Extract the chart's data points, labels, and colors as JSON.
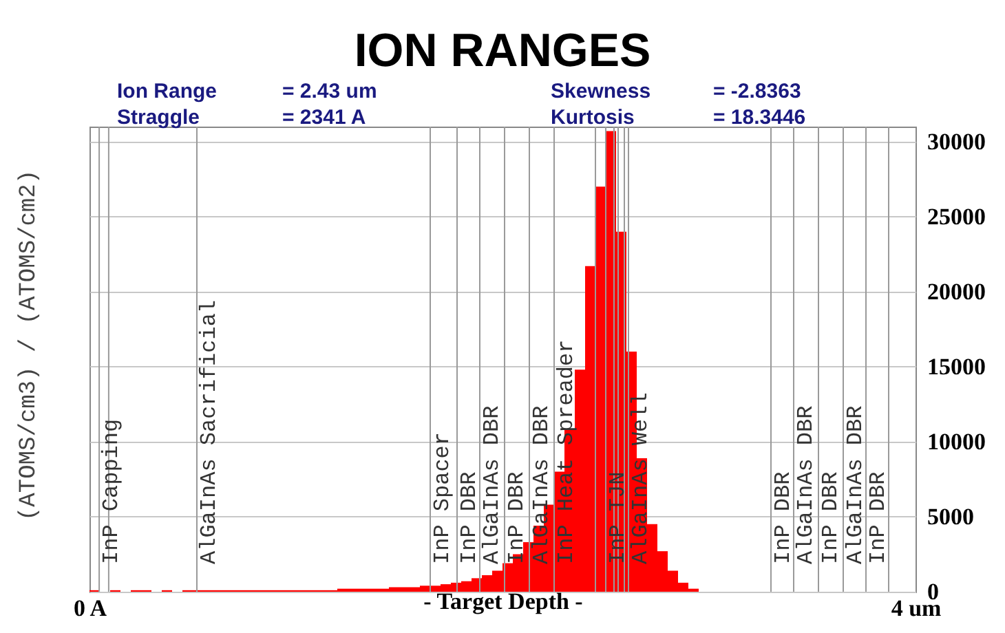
{
  "chart_data": {
    "type": "histogram",
    "title": "ION RANGES",
    "xlabel": "- Target Depth -",
    "ylabel": "(ATOMS/cm3) / (ATOMS/cm2)",
    "annotations": [
      "Ion Range = 2.43 um",
      "Straggle = 2341 A",
      "Skewness = -2.8363",
      "Kurtosis = 18.3446"
    ],
    "bins": [
      0,
      0.05,
      0.1,
      0.15,
      0.2,
      0.25,
      0.3,
      0.35,
      0.4,
      0.45,
      0.5,
      0.55,
      0.6,
      0.65,
      0.7,
      0.75,
      0.8,
      0.85,
      0.9,
      0.95,
      1,
      1.05,
      1.1,
      1.15,
      1.2,
      1.25,
      1.3,
      1.35,
      1.4,
      1.45,
      1.5,
      1.55,
      1.6,
      1.65,
      1.7,
      1.75,
      1.8,
      1.85,
      1.9,
      1.95,
      2,
      2.05,
      2.1,
      2.15,
      2.2,
      2.25,
      2.3,
      2.35,
      2.4,
      2.45,
      2.5,
      2.55,
      2.6,
      2.65,
      2.7,
      2.75,
      2.8,
      2.85,
      2.9,
      2.95,
      3,
      3.05,
      3.1,
      3.15,
      3.2,
      3.25,
      3.3,
      3.35,
      3.4,
      3.45,
      3.5,
      3.55,
      3.6,
      3.65,
      3.7,
      3.75,
      3.8,
      3.85,
      3.9,
      3.95,
      4
    ],
    "values": [
      100,
      0,
      100,
      0,
      100,
      100,
      0,
      100,
      0,
      100,
      100,
      100,
      100,
      100,
      100,
      100,
      100,
      100,
      100,
      100,
      100,
      100,
      100,
      100,
      200,
      200,
      200,
      200,
      200,
      300,
      300,
      300,
      400,
      400,
      500,
      600,
      700,
      900,
      1100,
      1400,
      1900,
      2500,
      3300,
      4400,
      5800,
      8000,
      10800,
      14800,
      21700,
      27000,
      30700,
      24000,
      16000,
      8900,
      4500,
      2700,
      1400,
      600,
      200,
      0,
      0,
      0,
      0,
      0,
      0,
      0,
      0,
      0,
      0,
      0,
      0,
      0,
      0,
      0,
      0,
      0,
      0,
      0,
      0,
      0
    ],
    "color": "#ff0000",
    "xlim": [
      0,
      4
    ],
    "xticks": [
      {
        "value": 0,
        "label": "0 A"
      },
      {
        "value": 4,
        "label": "4 um"
      }
    ],
    "ylim": [
      0,
      31000
    ],
    "yticks": [
      0,
      5000,
      10000,
      15000,
      20000,
      25000,
      30000
    ],
    "grid": "y",
    "ref_lines": [
      {
        "axis": "x",
        "value": 0.047,
        "label": "InP Capping"
      },
      {
        "axis": "x",
        "value": 0.093,
        "label": null
      },
      {
        "axis": "x",
        "value": 0.52,
        "label": "AlGaInAs Sacrificial"
      },
      {
        "axis": "x",
        "value": 1.65,
        "label": "InP Spacer"
      },
      {
        "axis": "x",
        "value": 1.78,
        "label": "InP DBR"
      },
      {
        "axis": "x",
        "value": 1.89,
        "label": "AlGaInAs DBR"
      },
      {
        "axis": "x",
        "value": 2.01,
        "label": "InP DBR"
      },
      {
        "axis": "x",
        "value": 2.13,
        "label": "AlGaInAs DBR"
      },
      {
        "axis": "x",
        "value": 2.25,
        "label": "InP Heat Spreader"
      },
      {
        "axis": "x",
        "value": 2.45,
        "label": null
      },
      {
        "axis": "x",
        "value": 2.5,
        "label": "InP TJN"
      },
      {
        "axis": "x",
        "value": 2.54,
        "label": null
      },
      {
        "axis": "x",
        "value": 2.56,
        "label": null
      },
      {
        "axis": "x",
        "value": 2.59,
        "label": null
      },
      {
        "axis": "x",
        "value": 2.61,
        "label": "AlGaInAs Well"
      },
      {
        "axis": "x",
        "value": 3.3,
        "label": "InP DBR"
      },
      {
        "axis": "x",
        "value": 3.41,
        "label": "AlGaInAs DBR"
      },
      {
        "axis": "x",
        "value": 3.53,
        "label": "InP DBR"
      },
      {
        "axis": "x",
        "value": 3.65,
        "label": "AlGaInAs DBR"
      },
      {
        "axis": "x",
        "value": 3.76,
        "label": "InP DBR"
      },
      {
        "axis": "x",
        "value": 3.87,
        "label": null
      }
    ]
  }
}
